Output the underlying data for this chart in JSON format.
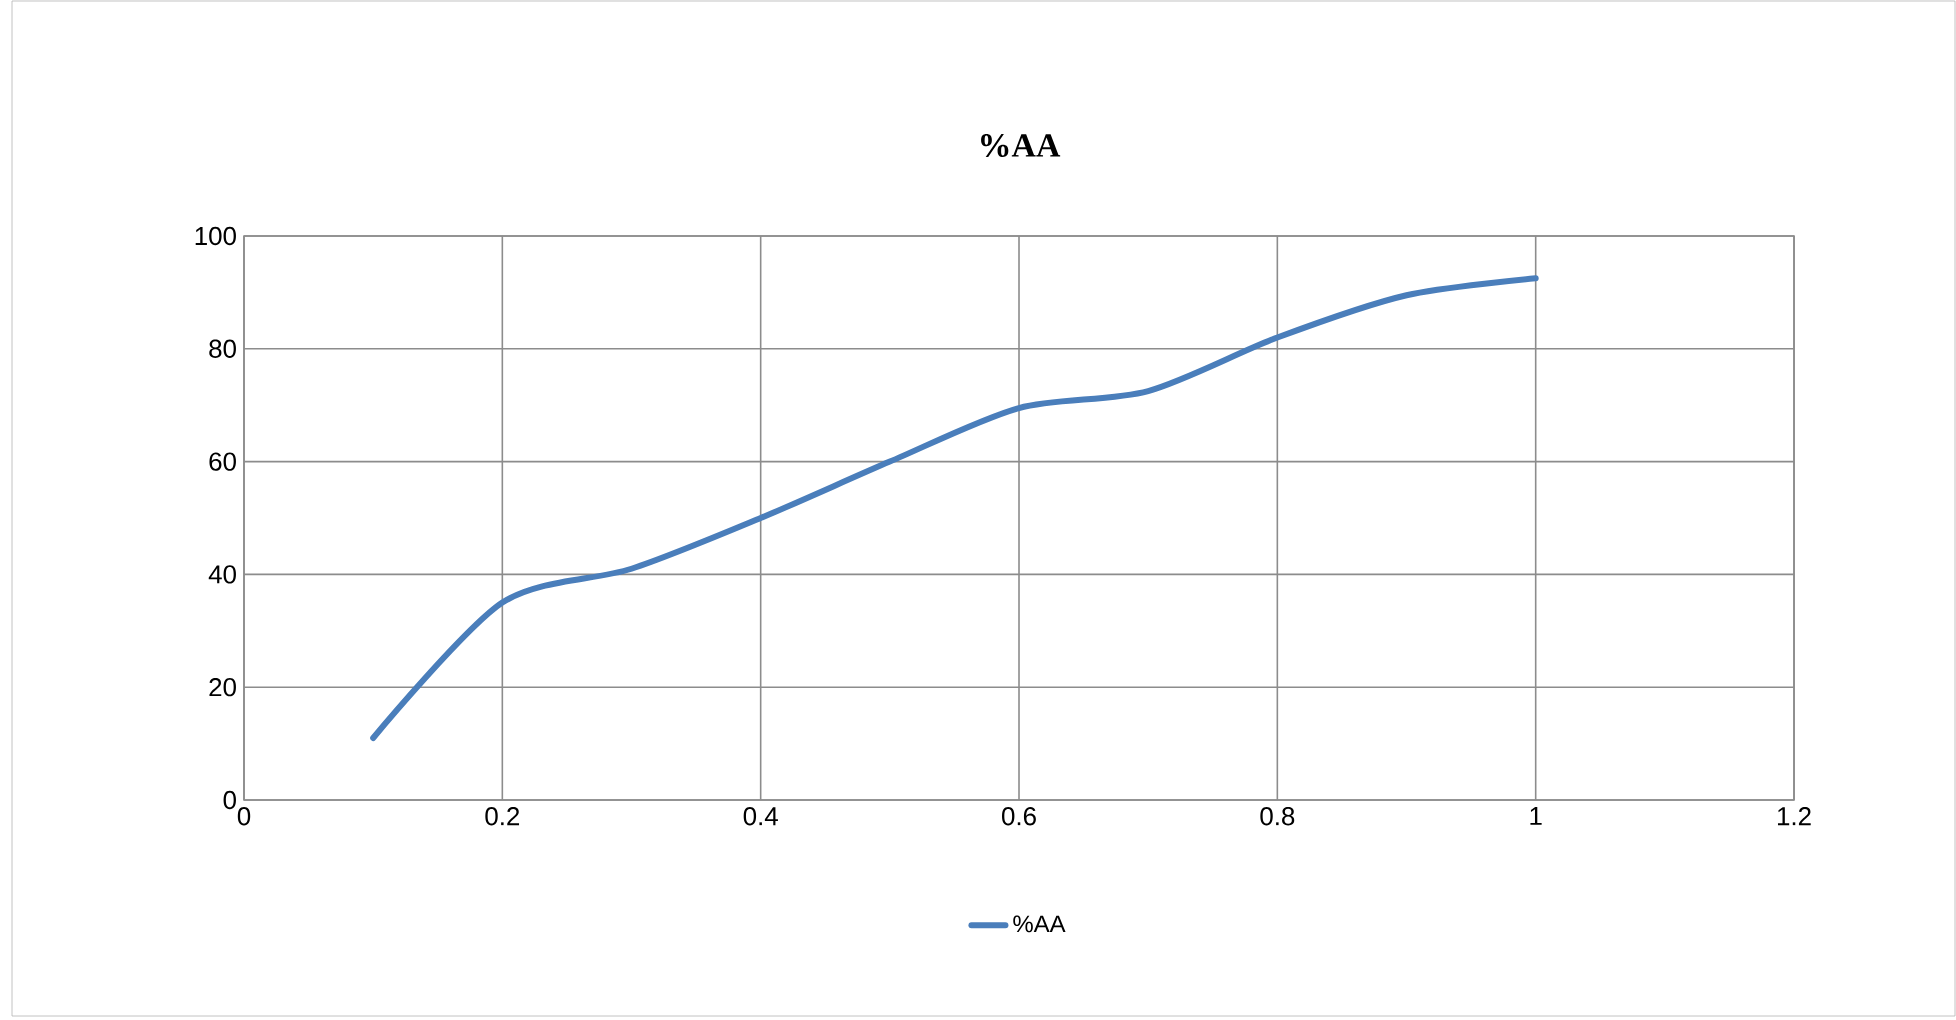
{
  "chart_data": {
    "type": "line",
    "title": "%AA",
    "x": [
      0.1,
      0.2,
      0.3,
      0.4,
      0.5,
      0.6,
      0.7,
      0.8,
      0.9,
      1.0
    ],
    "series": [
      {
        "name": "%AA",
        "color": "#4a7ebb",
        "values": [
          11,
          35,
          41,
          50,
          60,
          69.5,
          72.5,
          82,
          89.5,
          92.5
        ]
      }
    ],
    "xlim": [
      0,
      1.2
    ],
    "xticks": [
      0,
      0.2,
      0.4,
      0.6,
      0.8,
      1,
      1.2
    ],
    "ylim": [
      0,
      100
    ],
    "yticks": [
      0,
      20,
      40,
      60,
      80,
      100
    ],
    "grid": true,
    "legend": "bottom",
    "marker": "none",
    "line_style": "solid"
  }
}
